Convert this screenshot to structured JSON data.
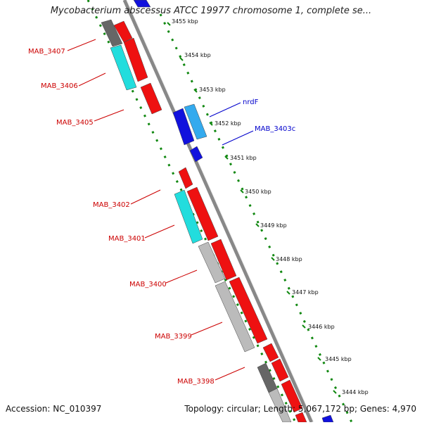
{
  "title": "Mycobacterium abscessus ATCC 19977 chromosome 1, complete se...",
  "footer": {
    "accession": "Accession: NC_010397",
    "summary": "Topology: circular; Length: 5,067,172 bp; Genes: 4,970"
  },
  "ticks": [
    "3455 kbp",
    "3454 kbp",
    "3453 kbp",
    "3452 kbp",
    "3451 kbp",
    "3450 kbp",
    "3449 kbp",
    "3448 kbp",
    "3447 kbp",
    "3446 kbp",
    "3445 kbp",
    "3444 kbp"
  ],
  "gene_labels_left": [
    "MAB_3407",
    "MAB_3406",
    "MAB_3405",
    "MAB_3402",
    "MAB_3401",
    "MAB_3400",
    "MAB_3399",
    "MAB_3398"
  ],
  "gene_labels_right": [
    "nrdF",
    "MAB_3403c"
  ],
  "colors": {
    "forward_gene": "#ee1111",
    "reverse_gene": "#1111dd",
    "cyan_feature": "#22dddd",
    "light_blue_feature": "#33aaee",
    "gray_feature": "#bbbbbb",
    "dark_gray_feature": "#666666",
    "backbone": "#888888",
    "tick_dots": "#118811",
    "left_label": "#cc0000",
    "right_label": "#0000cc"
  }
}
